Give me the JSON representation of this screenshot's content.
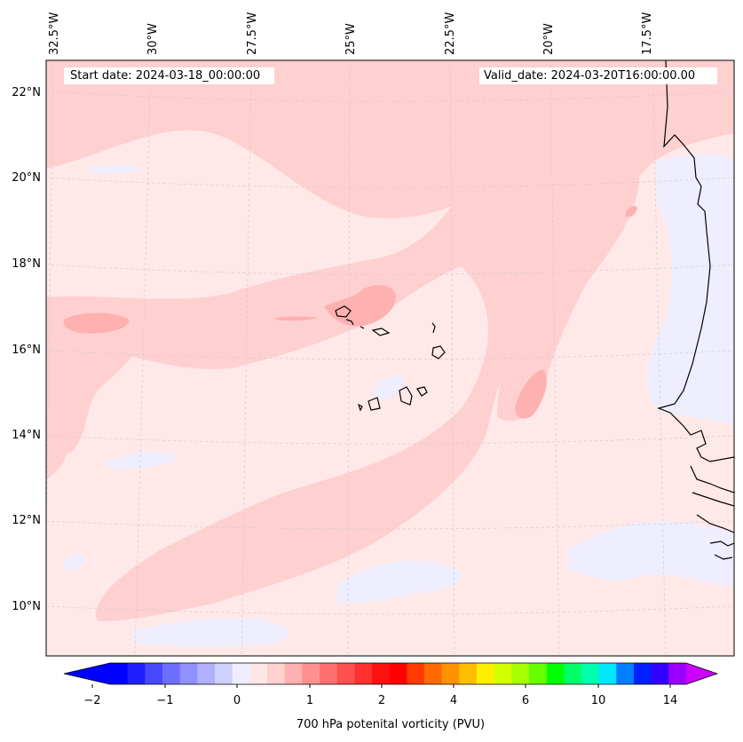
{
  "map": {
    "start_date": "Start date: 2024-03-18_00:00:00",
    "valid_date": "Valid_date: 2024-03-20T16:00:00.00",
    "lon_labels": [
      "32.5°W",
      "30°W",
      "27.5°W",
      "25°W",
      "22.5°W",
      "20°W",
      "17.5°W"
    ],
    "lat_labels": [
      "22°N",
      "20°N",
      "18°N",
      "16°N",
      "14°N",
      "12°N",
      "10°N"
    ],
    "field": "700 hPa potential vorticity",
    "region": "Eastern tropical Atlantic, Cape Verde islands and West African coast"
  },
  "colorbar": {
    "label": "700 hPa potenital vorticity (PVU)",
    "ticks": [
      "−2",
      "−1",
      "0",
      "1",
      "2",
      "4",
      "6",
      "10",
      "14"
    ],
    "colors": [
      "#0000ff",
      "#2020ff",
      "#4848ff",
      "#6e6eff",
      "#9090ff",
      "#b0b0ff",
      "#d0d0ff",
      "#eeeeff",
      "#ffe6e6",
      "#ffd0d0",
      "#ffb0b0",
      "#ff9090",
      "#ff7070",
      "#ff5050",
      "#ff3030",
      "#ff1010",
      "#ff0000",
      "#ff3a00",
      "#ff6a00",
      "#ff9200",
      "#ffbe00",
      "#ffee00",
      "#d4ff00",
      "#a6ff00",
      "#66ff00",
      "#00ff00",
      "#00ff66",
      "#00ffb0",
      "#00e6ff",
      "#0080ff",
      "#0020ff",
      "#3300ff",
      "#9900ff"
    ],
    "extend_min_color": "#0000ff",
    "extend_max_color": "#cc00ff"
  },
  "styles": {
    "background_pv": "#ffe8e8",
    "weak_positive": "#ffd0d0",
    "moderate_positive": "#ffb0b0",
    "weak_negative": "#eeeeff",
    "coastline": "#000000",
    "gridline": "#c8c8c8"
  }
}
